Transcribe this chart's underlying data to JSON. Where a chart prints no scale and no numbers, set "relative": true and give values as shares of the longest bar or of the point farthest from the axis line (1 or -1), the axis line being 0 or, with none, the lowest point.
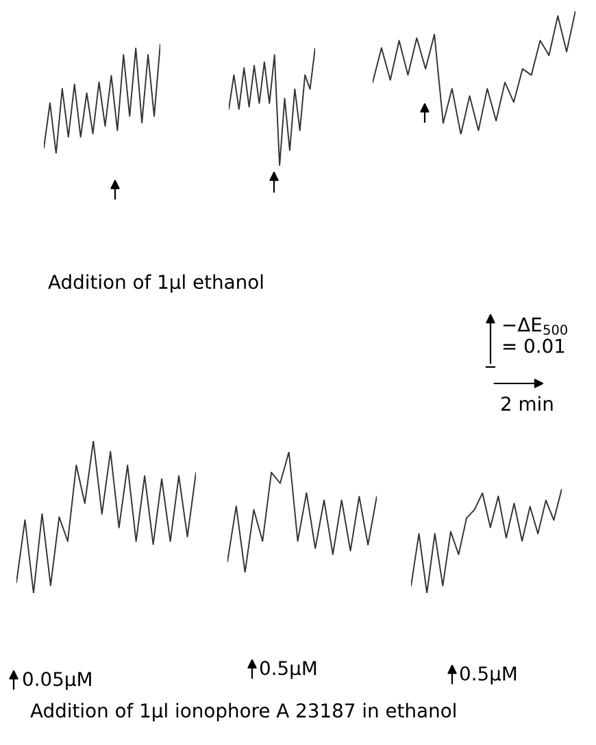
{
  "chart_data": [
    {
      "type": "line",
      "relative": true,
      "categories": [
        null,
        null,
        null,
        null,
        null,
        null,
        null,
        null,
        null,
        null,
        null,
        null,
        null,
        null,
        null,
        null,
        null,
        null,
        null,
        null
      ],
      "annotations": [
        "Addition of 1µl ethanol"
      ],
      "series": [
        {
          "color": "#333333",
          "values": [
            0.05,
            0.46,
            0,
            0.59,
            0.15,
            0.63,
            0.15,
            0.55,
            0.18,
            0.65,
            0.25,
            0.71,
            0.21,
            0.9,
            0.34,
            0.96,
            0.28,
            0.9,
            0.34,
            1.0
          ]
        }
      ]
    },
    {
      "type": "line",
      "relative": true,
      "categories": [
        null,
        null,
        null,
        null,
        null,
        null,
        null,
        null,
        null,
        null,
        null,
        null,
        null,
        null,
        null,
        null,
        null,
        null
      ],
      "series": [
        {
          "color": "#333333",
          "values": [
            0.48,
            0.77,
            0.48,
            0.83,
            0.5,
            0.85,
            0.53,
            0.88,
            0.53,
            0.94,
            0,
            0.57,
            0.13,
            0.65,
            0.3,
            0.77,
            0.65,
            1.0
          ]
        }
      ]
    },
    {
      "type": "line",
      "relative": true,
      "categories": [
        null,
        null,
        null,
        null,
        null,
        null,
        null,
        null,
        null,
        null,
        null,
        null,
        null,
        null,
        null,
        null,
        null,
        null,
        null,
        null,
        null,
        null,
        null,
        null
      ],
      "annotations": [
        "−ΔE$_{500}$\n= 0.01",
        "2 min"
      ],
      "series": [
        {
          "color": "#333333",
          "values": [
            0.42,
            0.7,
            0.44,
            0.76,
            0.48,
            0.78,
            0.53,
            0.81,
            0.09,
            0.37,
            0,
            0.31,
            0.03,
            0.37,
            0.11,
            0.42,
            0.26,
            0.53,
            0.48,
            0.76,
            0.64,
            0.96,
            0.67,
            1.0
          ]
        }
      ]
    },
    {
      "type": "line",
      "relative": true,
      "categories": [
        null,
        null,
        null,
        null,
        null,
        null,
        null,
        null,
        null,
        null,
        null,
        null,
        null,
        null,
        null,
        null,
        null,
        null,
        null,
        null,
        null,
        null
      ],
      "annotations": [
        "0.05µM",
        "Addition of 1µl ionophore A 23187 in ethanol"
      ],
      "series": [
        {
          "color": "#333333",
          "values": [
            0.07,
            0.48,
            0,
            0.52,
            0.05,
            0.5,
            0.34,
            0.84,
            0.59,
            1.0,
            0.52,
            0.93,
            0.43,
            0.84,
            0.34,
            0.77,
            0.32,
            0.75,
            0.34,
            0.77,
            0.37,
            0.79
          ]
        }
      ]
    },
    {
      "type": "line",
      "relative": true,
      "categories": [
        null,
        null,
        null,
        null,
        null,
        null,
        null,
        null,
        null,
        null,
        null,
        null,
        null,
        null,
        null,
        null,
        null,
        null
      ],
      "annotations": [
        "0.5µM"
      ],
      "series": [
        {
          "color": "#333333",
          "values": [
            0.09,
            0.55,
            0,
            0.52,
            0.26,
            0.83,
            0.74,
            1.0,
            0.26,
            0.66,
            0.2,
            0.6,
            0.15,
            0.6,
            0.18,
            0.63,
            0.23,
            0.63
          ]
        }
      ]
    },
    {
      "type": "line",
      "relative": true,
      "categories": [
        null,
        null,
        null,
        null,
        null,
        null,
        null,
        null,
        null,
        null,
        null,
        null,
        null,
        null,
        null,
        null,
        null,
        null,
        null,
        null
      ],
      "annotations": [
        "0.5µM"
      ],
      "series": [
        {
          "color": "#333333",
          "values": [
            0.07,
            0.57,
            0,
            0.57,
            0.07,
            0.59,
            0.37,
            0.72,
            0.8,
            0.96,
            0.63,
            0.93,
            0.53,
            0.86,
            0.5,
            0.83,
            0.57,
            0.89,
            0.7,
            1.0
          ]
        }
      ]
    }
  ]
}
